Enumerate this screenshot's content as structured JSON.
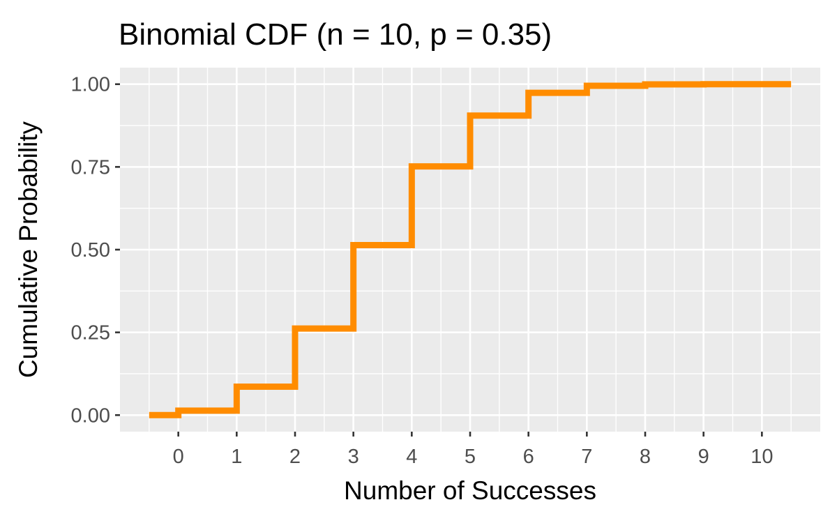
{
  "chart_data": {
    "type": "line",
    "style": "step",
    "title": "Binomial CDF (n = 10, p = 0.35)",
    "xlabel": "Number of Successes",
    "ylabel": "Cumulative Probability",
    "x": [
      0,
      1,
      2,
      3,
      4,
      5,
      6,
      7,
      8,
      9,
      10
    ],
    "series": [
      {
        "values": [
          0.0135,
          0.086,
          0.2616,
          0.5138,
          0.7515,
          0.9051,
          0.974,
          0.9952,
          0.9995,
          1.0,
          1.0
        ]
      }
    ],
    "step_start_x": -0.5,
    "step_start_y": 0.0,
    "step_end_x": 10.5,
    "xlim": [
      -1.0,
      11.0
    ],
    "ylim": [
      -0.05,
      1.05
    ],
    "x_ticks": [
      "0",
      "1",
      "2",
      "3",
      "4",
      "5",
      "6",
      "7",
      "8",
      "9",
      "10"
    ],
    "y_ticks": [
      "0.00",
      "0.25",
      "0.50",
      "0.75",
      "1.00"
    ],
    "grid": true,
    "legend": "none",
    "colors": {
      "line": "#FF8C00",
      "panel": "#EBEBEB",
      "grid": "#FFFFFF",
      "tick_text": "#4D4D4D",
      "tick_mark": "#333333"
    }
  }
}
